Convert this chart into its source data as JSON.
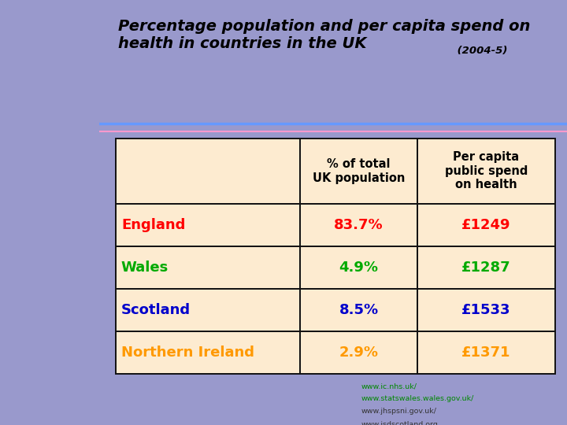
{
  "title_line1": "Percentage population and per capita spend on",
  "title_line2": "health in countries in the UK",
  "title_suffix": " (2004-5)",
  "bg_color": "#9999cc",
  "slide_bg": "#ffffff",
  "table_bg": "#fdebd0",
  "col1_header": "% of total\nUK population",
  "col2_header": "Per capita\npublic spend\non health",
  "rows": [
    {
      "country": "England",
      "pct": "83.7%",
      "spend": "£1249",
      "color": "#ff0000"
    },
    {
      "country": "Wales",
      "pct": "4.9%",
      "spend": "£1287",
      "color": "#00aa00"
    },
    {
      "country": "Scotland",
      "pct": "8.5%",
      "spend": "£1533",
      "color": "#0000cc"
    },
    {
      "country": "Northern Ireland",
      "pct": "2.9%",
      "spend": "£1371",
      "color": "#ff9900"
    }
  ],
  "footnotes": [
    {
      "text": "www.ic.nhs.uk/",
      "color": "#008800"
    },
    {
      "text": "www.statswales.wales.gov.uk/",
      "color": "#008800"
    },
    {
      "text": "www.jhspsni.gov.uk/",
      "color": "#333333"
    },
    {
      "text": "www.isdscotland.org",
      "color": "#333333"
    }
  ],
  "sep_color1": "#6699ff",
  "sep_color2": "#ff99cc"
}
